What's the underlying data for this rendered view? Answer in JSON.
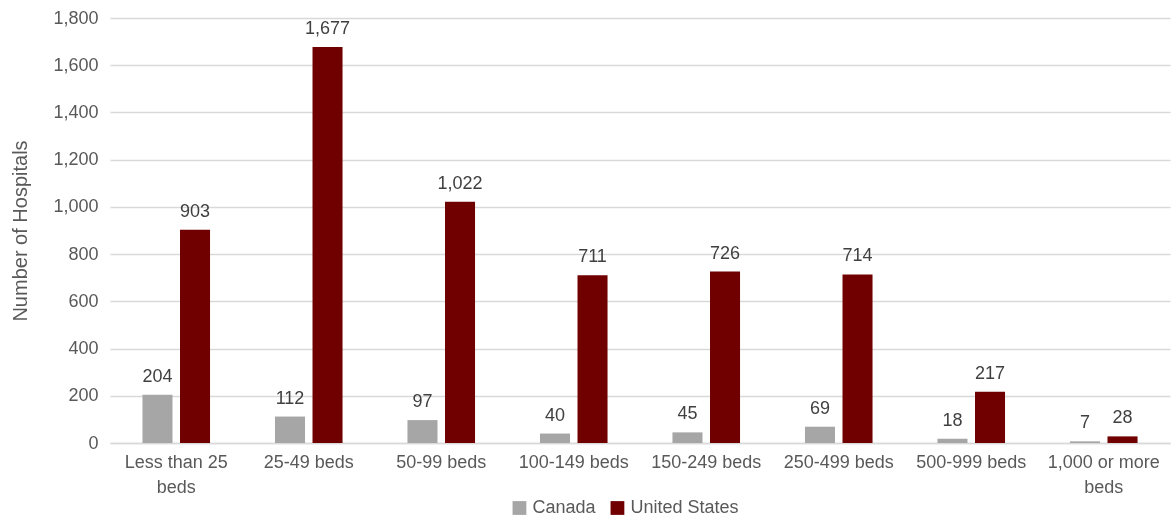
{
  "chart_data": {
    "type": "bar",
    "ylabel": "Number of Hospitals",
    "categories": [
      "Less than 25 beds",
      "25-49 beds",
      "50-99 beds",
      "100-149 beds",
      "150-249 beds",
      "250-499 beds",
      "500-999 beds",
      "1,000 or more beds"
    ],
    "series": [
      {
        "name": "Canada",
        "color": "#a6a6a6",
        "values": [
          204,
          112,
          97,
          40,
          45,
          69,
          18,
          7
        ],
        "value_labels": [
          "204",
          "112",
          "97",
          "40",
          "45",
          "69",
          "18",
          "7"
        ]
      },
      {
        "name": "United States",
        "color": "#700000",
        "values": [
          903,
          1677,
          1022,
          711,
          726,
          714,
          217,
          28
        ],
        "value_labels": [
          "903",
          "1,677",
          "1,022",
          "711",
          "726",
          "714",
          "217",
          "28"
        ]
      }
    ],
    "ylim": [
      0,
      1800
    ],
    "yticks": [
      0,
      200,
      400,
      600,
      800,
      {
        "value": 1000,
        "label": "1,000"
      },
      {
        "value": 1200,
        "label": "1,200"
      },
      {
        "value": 1400,
        "label": "1,400"
      },
      {
        "value": 1600,
        "label": "1,600"
      },
      {
        "value": 1800,
        "label": "1,800"
      }
    ],
    "grid": "y",
    "legend": "bottom"
  }
}
